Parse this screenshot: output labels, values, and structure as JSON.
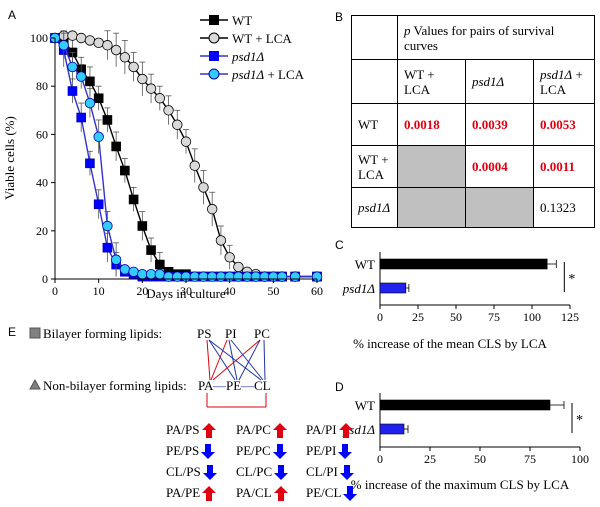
{
  "panels": {
    "a": "A",
    "b": "B",
    "c": "C",
    "d": "D",
    "e": "E"
  },
  "colors": {
    "red": "#e0000f",
    "blue": "#0000ff",
    "purple": "#3333cc",
    "cyan": "#33ccff",
    "gray": "#c0c0c0",
    "lightgray": "#d9d9d9"
  },
  "chart_data": [
    {
      "type": "line",
      "panel": "A",
      "xlabel": "Days in culture",
      "ylabel": "Viable cells (%)",
      "xlim": [
        0,
        60
      ],
      "ylim": [
        0,
        100
      ],
      "xticks": [
        "0",
        "10",
        "20",
        "30",
        "40",
        "50",
        "60"
      ],
      "yticks": [
        "0",
        "20",
        "40",
        "60",
        "80",
        "100"
      ],
      "legend": [
        "WT",
        "WT + LCA",
        "psd1Δ",
        "psd1Δ + LCA"
      ],
      "series": [
        {
          "name": "WT",
          "x": [
            0,
            2,
            4,
            6,
            8,
            10,
            12,
            14,
            16,
            18,
            20,
            22,
            24,
            26,
            28,
            30,
            32,
            34,
            36,
            38,
            40,
            42,
            44,
            46,
            48,
            50,
            52,
            55,
            60
          ],
          "y": [
            100,
            99,
            94,
            87,
            82,
            75,
            66,
            55,
            45,
            33,
            22,
            12,
            6,
            3,
            2,
            2,
            1,
            1,
            1,
            1,
            1,
            1,
            1,
            1,
            1,
            1,
            1,
            1,
            1
          ]
        },
        {
          "name": "WT + LCA",
          "x": [
            0,
            2,
            4,
            6,
            8,
            10,
            12,
            14,
            16,
            18,
            20,
            22,
            24,
            26,
            28,
            30,
            32,
            34,
            36,
            38,
            40,
            42,
            44,
            46,
            48,
            50,
            52,
            55,
            60
          ],
          "y": [
            100,
            101,
            101,
            100,
            99,
            98,
            97,
            95,
            92,
            88,
            83,
            79,
            75,
            70,
            64,
            57,
            47,
            38,
            29,
            16,
            9,
            5,
            3,
            2,
            1,
            1,
            1,
            1,
            1
          ]
        },
        {
          "name": "psd1Δ",
          "x": [
            0,
            2,
            4,
            6,
            8,
            10,
            12,
            14,
            16,
            18,
            20,
            22,
            24,
            26,
            28,
            30,
            32,
            34,
            36,
            38,
            40,
            42,
            44,
            46,
            48,
            50,
            52,
            55,
            60
          ],
          "y": [
            100,
            95,
            78,
            67,
            48,
            31,
            13,
            6,
            3,
            2,
            1,
            1,
            1,
            1,
            1,
            1,
            1,
            1,
            1,
            1,
            1,
            1,
            1,
            1,
            1,
            1,
            1,
            1,
            1
          ]
        },
        {
          "name": "psd1Δ + LCA",
          "x": [
            0,
            2,
            4,
            6,
            8,
            10,
            12,
            14,
            16,
            18,
            20,
            22,
            24,
            26,
            28,
            30,
            32,
            34,
            36,
            38,
            40,
            42,
            44,
            46,
            48,
            50,
            52,
            55,
            60
          ],
          "y": [
            100,
            97,
            88,
            84,
            73,
            59,
            22,
            8,
            4,
            3,
            2,
            2,
            2,
            1,
            1,
            1,
            1,
            1,
            1,
            1,
            1,
            1,
            1,
            1,
            1,
            1,
            1,
            1,
            1
          ]
        }
      ]
    },
    {
      "type": "bar",
      "panel": "C",
      "orientation": "horizontal",
      "categories": [
        "WT",
        "psd1Δ"
      ],
      "values": [
        110,
        17
      ],
      "errors": [
        6,
        2
      ],
      "xlabel": "% increase of the mean CLS by LCA",
      "xlim": [
        0,
        125
      ],
      "xticks": [
        "0",
        "25",
        "50",
        "75",
        "100",
        "125"
      ],
      "annotation": "*"
    },
    {
      "type": "bar",
      "panel": "D",
      "orientation": "horizontal",
      "categories": [
        "WT",
        "psd1Δ"
      ],
      "values": [
        85,
        12
      ],
      "errors": [
        7,
        2
      ],
      "xlabel": "% increase of the maximum CLS by LCA",
      "xlim": [
        0,
        100
      ],
      "xticks": [
        "0",
        "25",
        "50",
        "75",
        "100"
      ],
      "annotation": "*"
    }
  ],
  "table_b": {
    "header_title_p": "p",
    "header_title_rest": " Values for pairs of survival curves",
    "col1": "WT + LCA",
    "col2": "psd1Δ",
    "col3": "psd1Δ + LCA",
    "row1_label": "WT",
    "row1": [
      "0.0018",
      "0.0039",
      "0.0053"
    ],
    "row2_label": "WT + LCA",
    "row2": [
      "0.0004",
      "0.0011"
    ],
    "row3_label": "psd1Δ",
    "row3": [
      "0.1323"
    ]
  },
  "panel_e": {
    "bilayer_label": "Bilayer forming lipids:",
    "nonbilayer_label": "Non-bilayer forming lipids:",
    "top_lipids": [
      "PS",
      "PI",
      "PC"
    ],
    "bottom_lipids": [
      "PA",
      "PE",
      "CL"
    ],
    "bottom_sep": [
      "—",
      "—"
    ],
    "ratios": [
      {
        "label": "PA/PS",
        "dir": "up"
      },
      {
        "label": "PA/PC",
        "dir": "up"
      },
      {
        "label": "PA/PI",
        "dir": "up"
      },
      {
        "label": "PE/PS",
        "dir": "down"
      },
      {
        "label": "PE/PC",
        "dir": "down"
      },
      {
        "label": "PE/PI",
        "dir": "down"
      },
      {
        "label": "CL/PS",
        "dir": "down"
      },
      {
        "label": "CL/PC",
        "dir": "down"
      },
      {
        "label": "CL/PI",
        "dir": "down"
      },
      {
        "label": "PA/PE",
        "dir": "up"
      },
      {
        "label": "PA/CL",
        "dir": "up"
      },
      {
        "label": "PE/CL",
        "dir": "down"
      }
    ]
  }
}
